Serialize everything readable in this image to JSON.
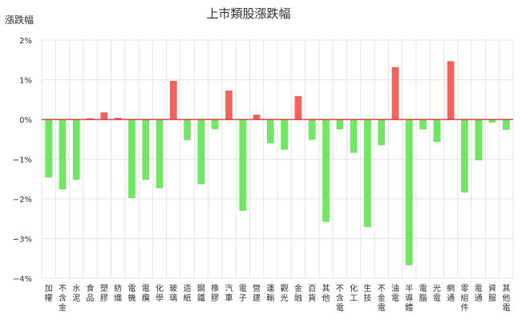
{
  "chart_data": {
    "type": "bar",
    "title": "上市類股漲跌幅",
    "ylabel": "漲跌幅",
    "xlabel": "",
    "ylim": [
      -4,
      2
    ],
    "yticks": [
      "2%",
      "1%",
      "0%",
      "−1%",
      "−2%",
      "−3%",
      "−4%"
    ],
    "ytick_values": [
      2,
      1,
      0,
      -1,
      -2,
      -3,
      -4
    ],
    "grid": true,
    "legend": "none",
    "colors": {
      "positive": "#f8605a",
      "negative": "#6de85f",
      "zero_line": "#d62828",
      "grid": "#e4e4e4",
      "axis": "#333333"
    },
    "categories": [
      "加權",
      "不含金",
      "水泥",
      "食品",
      "塑膠",
      "紡織",
      "電機",
      "電纜",
      "化學",
      "玻璃",
      "造紙",
      "鋼鐵",
      "橡膠",
      "汽車",
      "電子",
      "營建",
      "運輸",
      "觀光",
      "金融",
      "百貨",
      "其他",
      "不含電",
      "化工",
      "生技",
      "不金電",
      "油電",
      "半導體",
      "電腦",
      "光電",
      "網通",
      "零組件",
      "電通",
      "資服",
      "其他電"
    ],
    "values": [
      -1.46,
      -1.76,
      -1.52,
      0.03,
      0.18,
      0.04,
      -1.98,
      -1.52,
      -1.73,
      0.97,
      -0.52,
      -1.63,
      -0.24,
      0.73,
      -2.3,
      0.12,
      -0.6,
      -0.76,
      0.59,
      -0.51,
      -2.58,
      -0.25,
      -0.84,
      -2.71,
      -0.65,
      1.32,
      -3.67,
      -0.25,
      -0.57,
      1.47,
      -1.84,
      -1.03,
      -0.08,
      -0.26
    ]
  }
}
